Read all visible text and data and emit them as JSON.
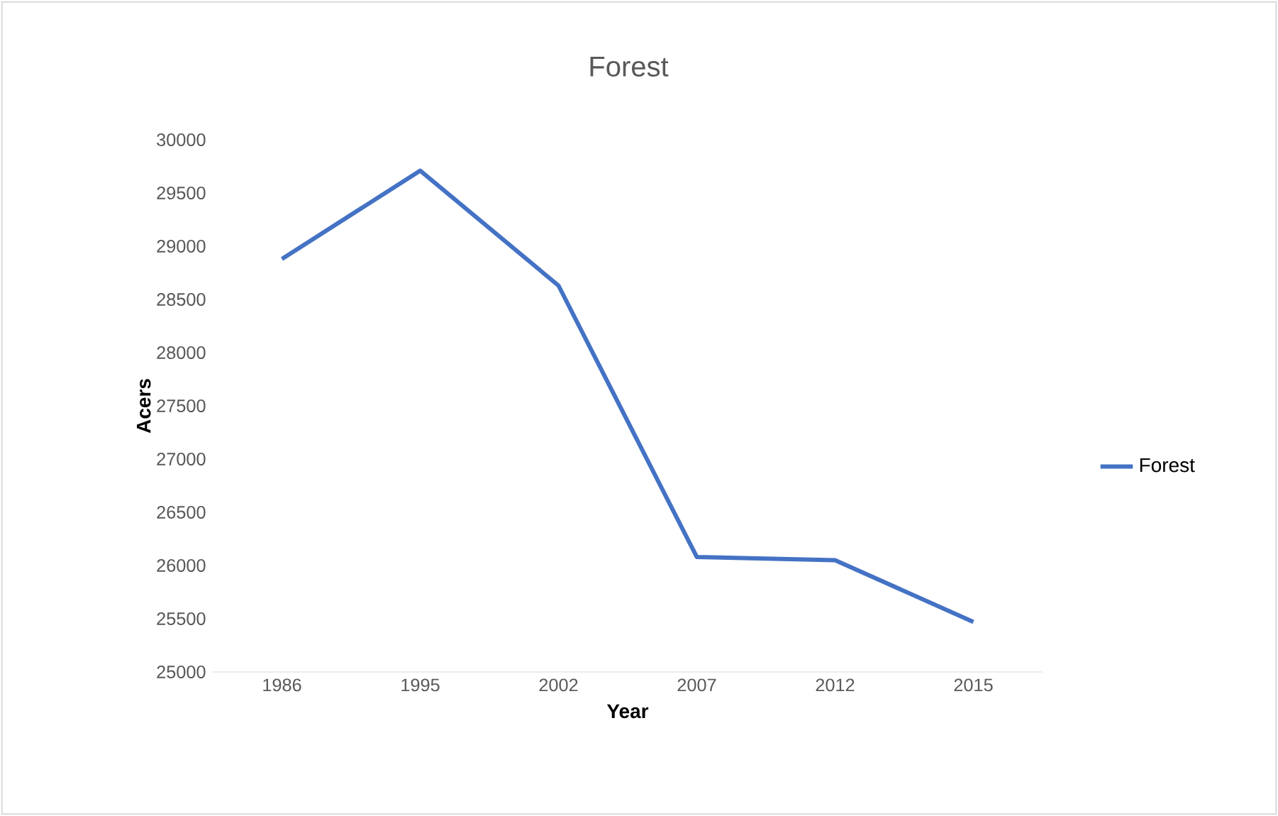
{
  "chart_data": {
    "type": "line",
    "title": "Forest",
    "xlabel": "Year",
    "ylabel": "Acers",
    "categories": [
      "1986",
      "1995",
      "2002",
      "2007",
      "2012",
      "2015"
    ],
    "series": [
      {
        "name": "Forest",
        "color": "#4472c4",
        "values": [
          28880,
          29710,
          28630,
          26080,
          26050,
          25470
        ]
      }
    ],
    "ylim": [
      25000,
      30000
    ],
    "yticks": [
      25000,
      25500,
      26000,
      26500,
      27000,
      27500,
      28000,
      28500,
      29000,
      29500,
      30000
    ],
    "legend": "right",
    "marker": "none",
    "line_style": "solid"
  }
}
